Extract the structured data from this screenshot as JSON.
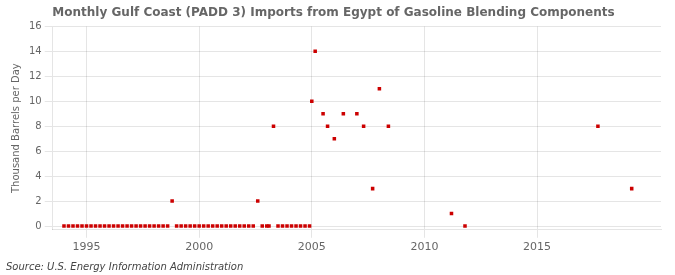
{
  "chart_data": {
    "type": "scatter",
    "title": "Monthly Gulf Coast (PADD 3) Imports from Egypt of Gasoline Blending Components",
    "y_label": "Thousand Barrels per Day",
    "annotations": [
      "Source: U.S. Energy Information Administration"
    ],
    "x": [
      1994.0,
      1994.2,
      1994.4,
      1994.6,
      1994.8,
      1995.0,
      1995.2,
      1995.4,
      1995.6,
      1995.8,
      1996.0,
      1996.2,
      1996.4,
      1996.6,
      1996.8,
      1997.0,
      1997.2,
      1997.4,
      1997.6,
      1997.8,
      1998.0,
      1998.2,
      1998.4,
      1998.6,
      1998.8,
      1999.0,
      1999.2,
      1999.4,
      1999.6,
      1999.8,
      2000.0,
      2000.2,
      2000.4,
      2000.6,
      2000.8,
      2001.0,
      2001.2,
      2001.4,
      2001.6,
      2001.8,
      2002.0,
      2002.2,
      2002.4,
      2002.6,
      2002.8,
      2003.0,
      2003.1,
      2003.3,
      2003.5,
      2003.7,
      2003.9,
      2004.1,
      2004.3,
      2004.5,
      2004.7,
      2004.9,
      2005.0,
      2005.15,
      2005.5,
      2005.7,
      2006.0,
      2006.4,
      2007.0,
      2007.3,
      2007.7,
      2008.0,
      2008.4,
      2011.2,
      2011.8,
      2017.7,
      2019.2
    ],
    "values": [
      0,
      0,
      0,
      0,
      0,
      0,
      0,
      0,
      0,
      0,
      0,
      0,
      0,
      0,
      0,
      0,
      0,
      0,
      0,
      0,
      0,
      0,
      0,
      0,
      2,
      0,
      0,
      0,
      0,
      0,
      0,
      0,
      0,
      0,
      0,
      0,
      0,
      0,
      0,
      0,
      0,
      0,
      0,
      2,
      0,
      0,
      0,
      8,
      0,
      0,
      0,
      0,
      0,
      0,
      0,
      0,
      10,
      14,
      9,
      8,
      7,
      9,
      9,
      8,
      3,
      11,
      8,
      1,
      0,
      8,
      3
    ],
    "color": "#cc0000",
    "marker": "square",
    "xlim": [
      1993.5,
      2020.5
    ],
    "ylim": [
      -0.3,
      16
    ],
    "xticks": [
      1995,
      2000,
      2005,
      2010,
      2015
    ],
    "yticks": [
      0,
      2,
      4,
      6,
      8,
      10,
      12,
      14,
      16
    ],
    "grid": true
  }
}
